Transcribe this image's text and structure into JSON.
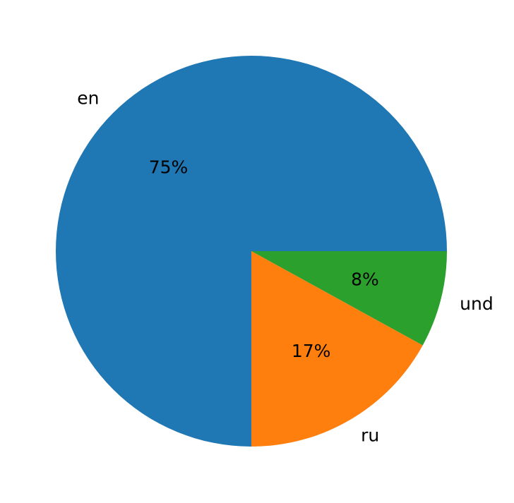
{
  "chart_data": {
    "type": "pie",
    "categories": [
      "en",
      "ru",
      "und"
    ],
    "values": [
      75,
      17,
      8
    ],
    "value_labels": [
      "75%",
      "17%",
      "8%"
    ],
    "colors": [
      "#1f77b4",
      "#ff7f0e",
      "#2ca02c"
    ],
    "start_angle": 0,
    "direction": "counterclockwise",
    "title": ""
  }
}
